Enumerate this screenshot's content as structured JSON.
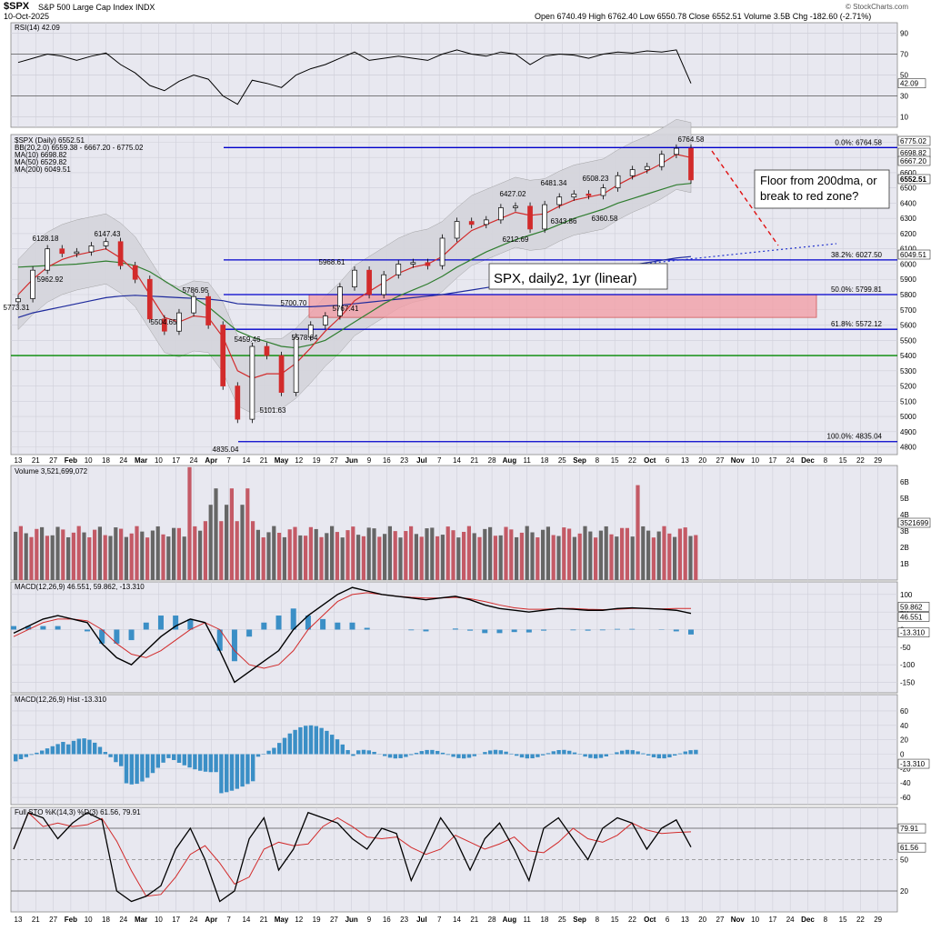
{
  "header": {
    "symbol": "$SPX",
    "name": "S&P 500 Large Cap Index",
    "exchange": "INDX",
    "date": "10-Oct-2025",
    "ohlc": "Open 6740.49  High 6762.40  Low 6550.78  Close 6552.51  Volume 3.5B  Chg -182.60 (-2.71%)",
    "watermark": "© StockCharts.com"
  },
  "panels": {
    "rsi": {
      "label": "RSI(14) 42.09",
      "value_tag": "42.09",
      "ticks": [
        "90",
        "70",
        "50",
        "30",
        "10"
      ]
    },
    "price": {
      "legend": [
        "$SPX (Daily) 6552.51",
        "BB(20,2.0) 6559.38 - 6667.20 - 6775.02",
        "MA(10) 6698.82",
        "MA(50) 6529.82",
        "MA(200) 6049.51"
      ],
      "ticks": [
        "6800",
        "6700",
        "6600",
        "6500",
        "6400",
        "6300",
        "6200",
        "6100",
        "6000",
        "5900",
        "5800",
        "5700",
        "5600",
        "5500",
        "5400",
        "5300",
        "5200",
        "5100",
        "5000",
        "4900",
        "4800"
      ],
      "value_tags": [
        "6775.02",
        "6698.82",
        "6667.20",
        "6552.51",
        "6049.51"
      ],
      "fib": [
        "0.0%: 6764.58",
        "38.2%: 6027.50",
        "50.0%: 5799.81",
        "61.8%: 5572.12",
        "100.0%: 4835.04"
      ],
      "price_labels": [
        "6764.58",
        "6128.18",
        "6147.43",
        "5962.92",
        "5773.31",
        "5786.95",
        "5504.65",
        "5700.70",
        "5968.61",
        "5767.41",
        "5459.46",
        "5578.64",
        "5101.63",
        "4835.04",
        "6427.02",
        "6481.34",
        "6508.23",
        "6343.86",
        "6360.58",
        "6212.69"
      ],
      "annotation_1": "Floor from 200dma, or break to red zone?",
      "annotation_2": "SPX, daily2, 1yr (linear)"
    },
    "volume": {
      "label": "Volume 3,521,699,072",
      "value_tag": "3521699",
      "ticks": [
        "6B",
        "5B",
        "4B",
        "3B",
        "2B",
        "1B"
      ]
    },
    "macd": {
      "label": "MACD(12,26,9) 46.551, 59.862, -13.310",
      "tags": [
        "59.862",
        "46.551",
        "-13.310"
      ],
      "ticks": [
        "100",
        "50",
        "0",
        "-50",
        "-100",
        "-150"
      ]
    },
    "hist": {
      "label": "MACD(12,26,9) Hist -13.310",
      "value_tag": "-13.310",
      "ticks": [
        "60",
        "40",
        "20",
        "0",
        "-20",
        "-40",
        "-60"
      ]
    },
    "sto": {
      "label": "Full STO %K(14,3) %D(3) 61.56, 79.91",
      "tags": [
        "79.91",
        "61.56"
      ],
      "ticks": [
        "80",
        "50",
        "20"
      ]
    }
  },
  "x_axis": {
    "labels": [
      "13",
      "21",
      "27",
      "Feb",
      "10",
      "18",
      "24",
      "Mar",
      "10",
      "17",
      "24",
      "Apr",
      "7",
      "14",
      "21",
      "May",
      "12",
      "19",
      "27",
      "Jun",
      "9",
      "16",
      "23",
      "Jul",
      "7",
      "14",
      "21",
      "28",
      "Aug",
      "11",
      "18",
      "25",
      "Sep",
      "8",
      "15",
      "22",
      "Oct",
      "6",
      "13",
      "20",
      "27",
      "Nov",
      "10",
      "17",
      "24",
      "Dec",
      "8",
      "15",
      "22",
      "29"
    ]
  },
  "colors": {
    "up": "#ffffff",
    "down": "#d22b2b",
    "bb_fill": "#d5d5dc",
    "ma10": "#d22b2b",
    "ma50": "#2f7d2f",
    "ma200": "#1e2a9c",
    "hline": "#0000cc",
    "green_line": "#008800",
    "red_zone": "#f2a0a8",
    "macd_bar": "#3b8fc6",
    "vol_up": "#666666",
    "vol_down": "#c45a66"
  },
  "chart_data": {
    "type": "candlestick",
    "title": "$SPX S&P 500 Large Cap Index",
    "x": [
      "2025-01-13",
      "2025-01-21",
      "2025-01-24",
      "2025-01-31",
      "2025-02-06",
      "2025-02-14",
      "2025-02-19",
      "2025-02-24",
      "2025-03-03",
      "2025-03-10",
      "2025-03-13",
      "2025-03-19",
      "2025-03-25",
      "2025-04-01",
      "2025-04-04",
      "2025-04-08",
      "2025-04-09",
      "2025-04-15",
      "2025-04-21",
      "2025-04-25",
      "2025-05-01",
      "2025-05-07",
      "2025-05-12",
      "2025-05-19",
      "2025-05-23",
      "2025-05-30",
      "2025-06-06",
      "2025-06-13",
      "2025-06-20",
      "2025-06-27",
      "2025-07-03",
      "2025-07-11",
      "2025-07-18",
      "2025-07-25",
      "2025-07-31",
      "2025-08-01",
      "2025-08-08",
      "2025-08-15",
      "2025-08-22",
      "2025-08-29",
      "2025-09-05",
      "2025-09-12",
      "2025-09-19",
      "2025-09-26",
      "2025-10-03",
      "2025-10-08",
      "2025-10-10"
    ],
    "close": [
      5773.31,
      5960,
      6100,
      6070,
      6080,
      6120,
      6147.43,
      5990,
      5900,
      5640,
      5560,
      5680,
      5786.95,
      5600,
      5200,
      4982,
      5460,
      5400,
      5158,
      5520,
      5600,
      5660,
      5850,
      5960,
      5800,
      5930,
      6000,
      6010,
      5990,
      6170,
      6280,
      6260,
      6290,
      6370,
      6380,
      6230,
      6390,
      6440,
      6460,
      6450,
      6500,
      6580,
      6620,
      6640,
      6720,
      6760,
      6552.51
    ],
    "ma10": [
      5800,
      5900,
      5980,
      6030,
      6060,
      6080,
      6100,
      6040,
      5950,
      5800,
      5650,
      5620,
      5660,
      5650,
      5520,
      5300,
      5250,
      5280,
      5280,
      5350,
      5450,
      5560,
      5650,
      5760,
      5820,
      5880,
      5940,
      5980,
      6000,
      6050,
      6140,
      6220,
      6260,
      6300,
      6340,
      6320,
      6330,
      6380,
      6420,
      6440,
      6460,
      6520,
      6570,
      6610,
      6660,
      6720,
      6698.82
    ],
    "ma50": [
      5980,
      5985,
      5990,
      5995,
      6000,
      6010,
      6020,
      6010,
      5990,
      5950,
      5890,
      5830,
      5780,
      5720,
      5640,
      5560,
      5520,
      5490,
      5460,
      5450,
      5470,
      5500,
      5560,
      5620,
      5680,
      5740,
      5790,
      5830,
      5870,
      5920,
      5980,
      6030,
      6080,
      6120,
      6160,
      6190,
      6220,
      6260,
      6300,
      6330,
      6360,
      6400,
      6430,
      6460,
      6490,
      6520,
      6529.82
    ],
    "ma200": [
      5650,
      5680,
      5700,
      5720,
      5740,
      5760,
      5780,
      5790,
      5795,
      5790,
      5785,
      5780,
      5775,
      5770,
      5760,
      5740,
      5735,
      5730,
      5725,
      5720,
      5720,
      5725,
      5730,
      5740,
      5750,
      5760,
      5770,
      5780,
      5790,
      5800,
      5815,
      5830,
      5845,
      5860,
      5875,
      5890,
      5905,
      5920,
      5935,
      5950,
      5965,
      5980,
      5995,
      6010,
      6025,
      6040,
      6049.51
    ],
    "fib_levels": [
      6764.58,
      6027.5,
      5799.81,
      5572.12,
      4835.04
    ],
    "green_level": 5400,
    "red_zone": [
      5650,
      5800
    ],
    "rsi_last": 42.09,
    "macd": {
      "macd": 46.551,
      "signal": 59.862,
      "hist": -13.31
    },
    "sto": {
      "k": 61.56,
      "d": 79.91
    },
    "volume_last": 3521699072,
    "ylim": [
      4750,
      6850
    ]
  }
}
